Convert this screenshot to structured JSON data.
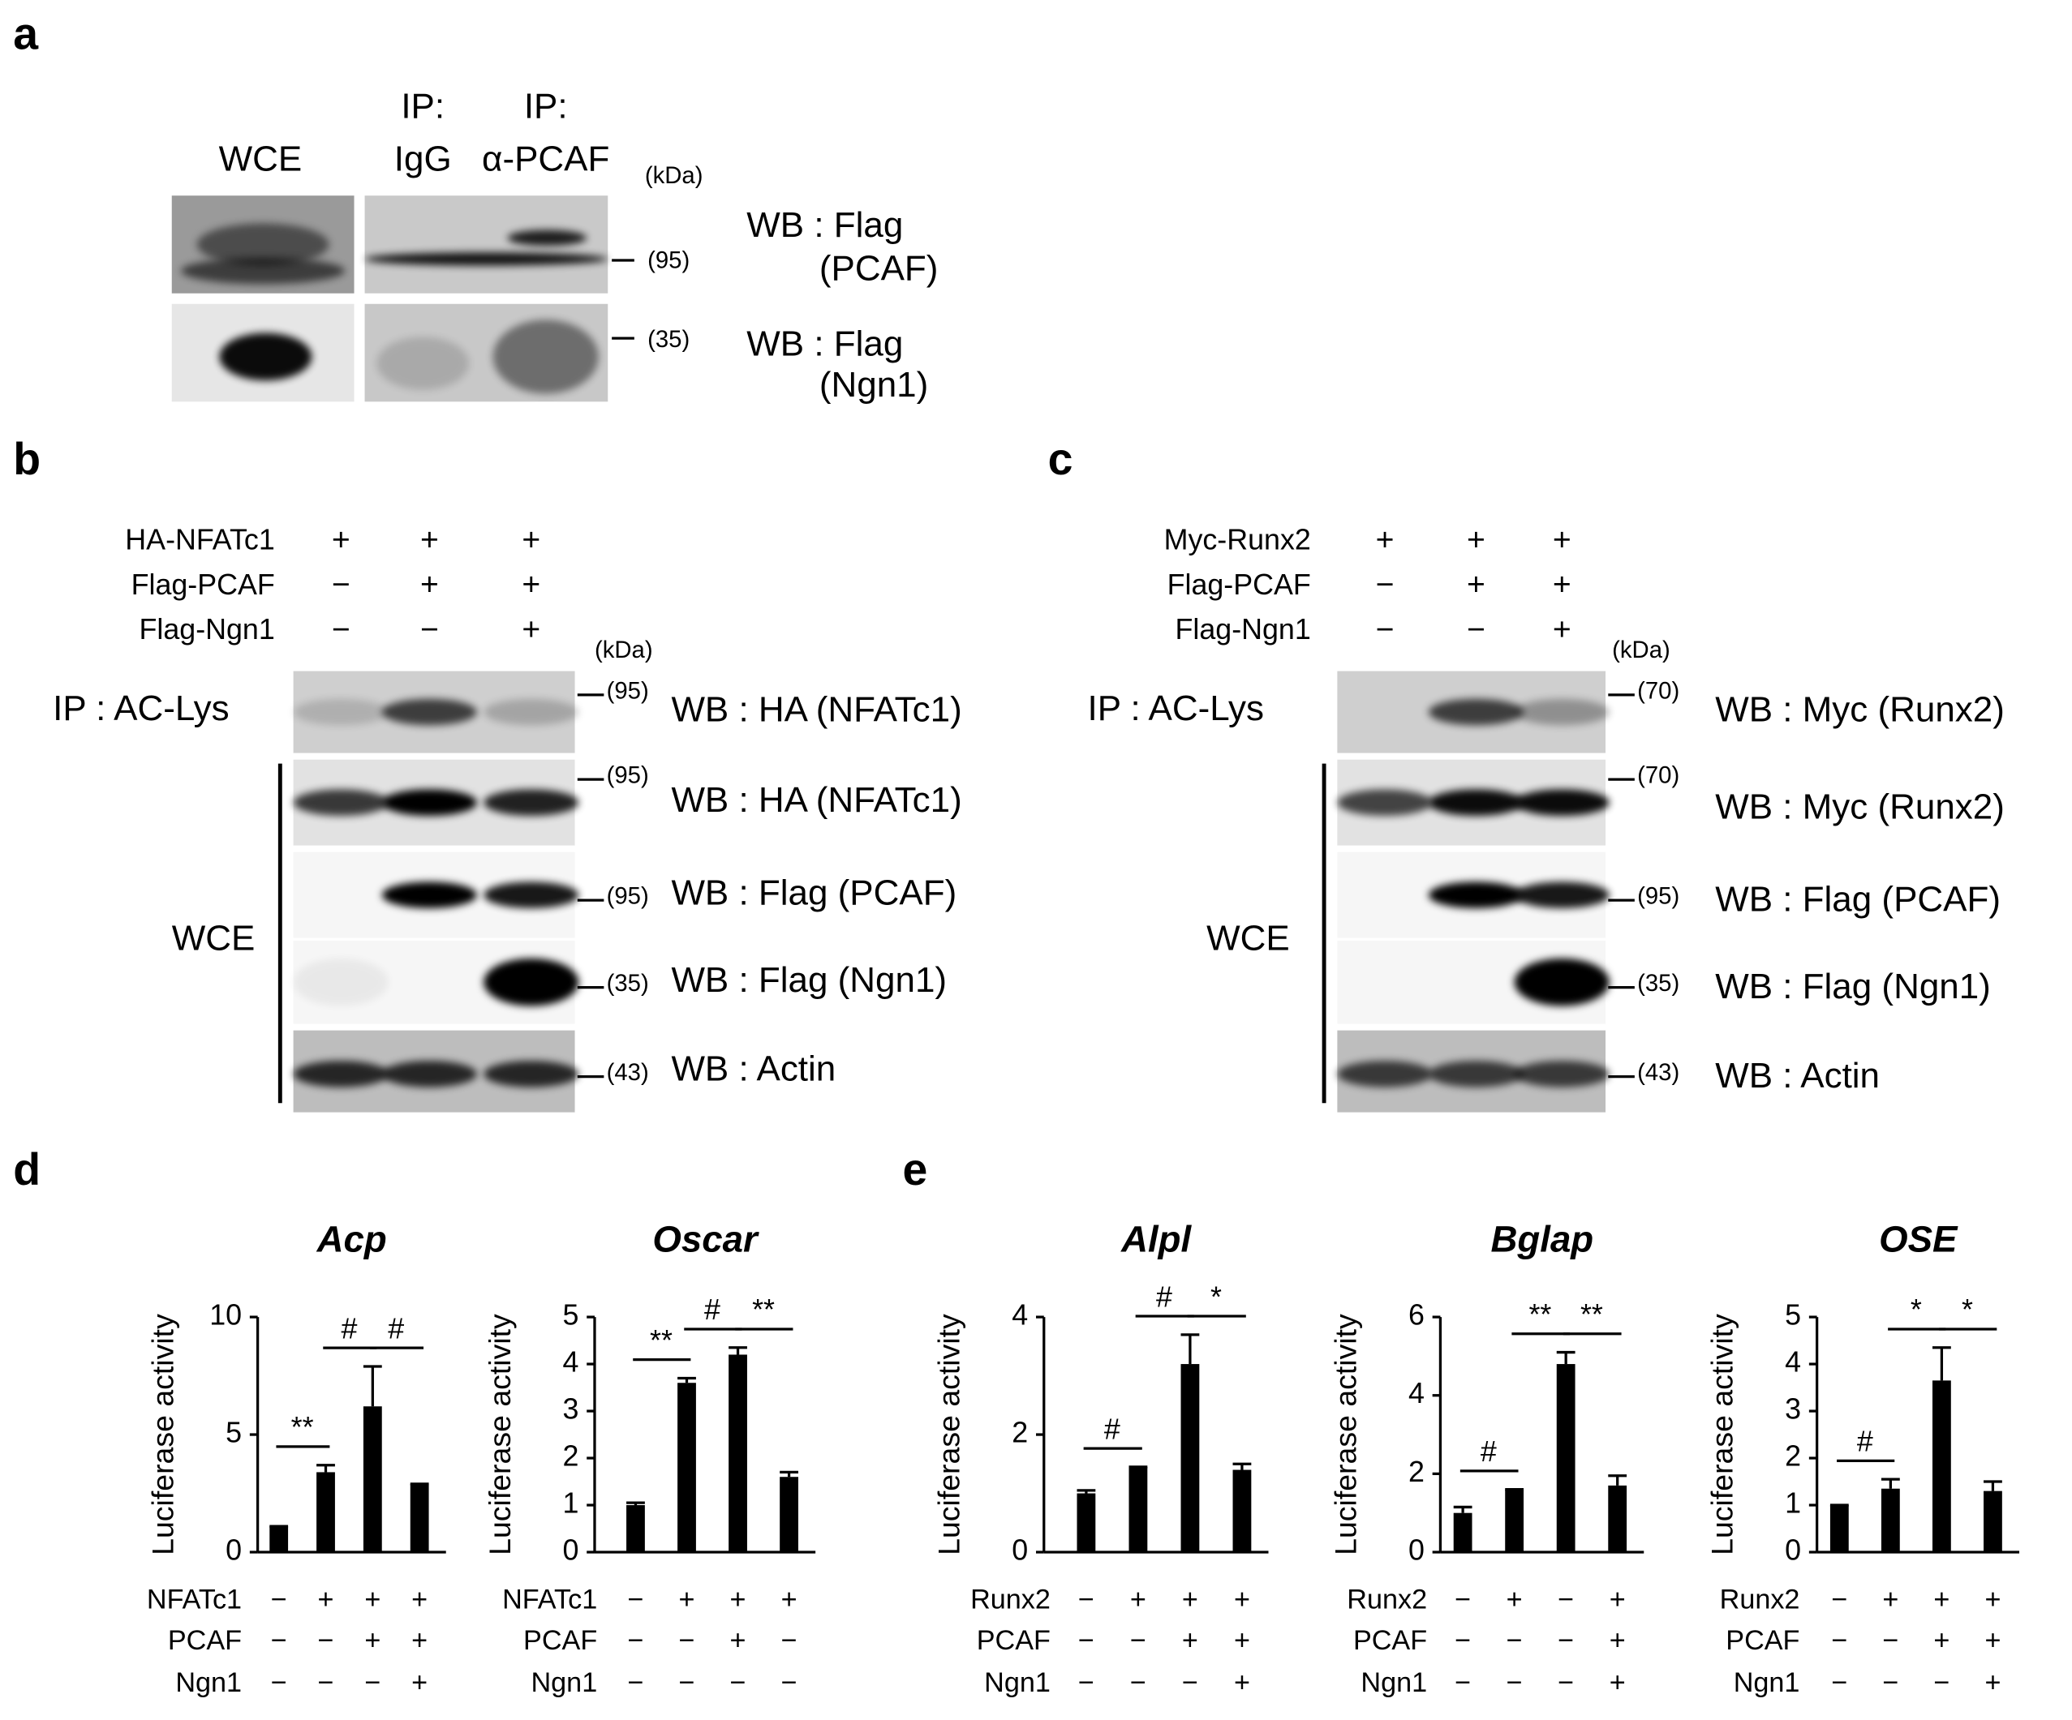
{
  "panel_a": {
    "label": "a",
    "column_labels": [
      "WCE",
      "IP:",
      "IgG",
      "IP:",
      "α-PCAF"
    ],
    "unit": "(kDa)",
    "blots": [
      {
        "marker": "(95)",
        "wb": "WB : Flag",
        "target": "(PCAF)"
      },
      {
        "marker": "(35)",
        "wb": "WB : Flag",
        "target": "(Ngn1)"
      }
    ]
  },
  "panel_b": {
    "label": "b",
    "conditions": [
      {
        "name": "HA-NFATc1",
        "signs": [
          "+",
          "+",
          "+"
        ]
      },
      {
        "name": "Flag-PCAF",
        "signs": [
          "−",
          "+",
          "+"
        ]
      },
      {
        "name": "Flag-Ngn1",
        "signs": [
          "−",
          "−",
          "+"
        ]
      }
    ],
    "unit": "(kDa)",
    "ip_label": "IP : AC-Lys",
    "wce_label": "WCE",
    "blots": [
      {
        "marker": "(95)",
        "wb": "WB : HA (NFATc1)"
      },
      {
        "marker": "(95)",
        "wb": "WB : HA (NFATc1)"
      },
      {
        "marker": "(95)",
        "wb": "WB : Flag (PCAF)"
      },
      {
        "marker": "(35)",
        "wb": "WB : Flag (Ngn1)"
      },
      {
        "marker": "(43)",
        "wb": "WB : Actin"
      }
    ]
  },
  "panel_c": {
    "label": "c",
    "conditions": [
      {
        "name": "Myc-Runx2",
        "signs": [
          "+",
          "+",
          "+"
        ]
      },
      {
        "name": "Flag-PCAF",
        "signs": [
          "−",
          "+",
          "+"
        ]
      },
      {
        "name": "Flag-Ngn1",
        "signs": [
          "−",
          "−",
          "+"
        ]
      }
    ],
    "unit": "(kDa)",
    "ip_label": "IP : AC-Lys",
    "wce_label": "WCE",
    "blots": [
      {
        "marker": "(70)",
        "wb": "WB : Myc (Runx2)"
      },
      {
        "marker": "(70)",
        "wb": "WB : Myc (Runx2)"
      },
      {
        "marker": "(95)",
        "wb": "WB : Flag (PCAF)"
      },
      {
        "marker": "(35)",
        "wb": "WB : Flag (Ngn1)"
      },
      {
        "marker": "(43)",
        "wb": "WB : Actin"
      }
    ]
  },
  "panel_d": {
    "label": "d"
  },
  "panel_e": {
    "label": "e"
  },
  "chart_data": [
    {
      "type": "bar",
      "title": "Acp",
      "ylabel": "Luciferase activity",
      "color": "#000000",
      "values": [
        1.1,
        3.4,
        6.2,
        2.9
      ],
      "errors": [
        0,
        0.3,
        1.7,
        0
      ],
      "ylim": [
        0,
        10
      ],
      "yticks": [
        0,
        5,
        10
      ],
      "significance": [
        "**",
        "#",
        "#"
      ],
      "conditions": [
        {
          "name": "NFATc1",
          "signs": [
            "−",
            "+",
            "+",
            "+"
          ]
        },
        {
          "name": "PCAF",
          "signs": [
            "−",
            "−",
            "+",
            "+"
          ]
        },
        {
          "name": "Ngn1",
          "signs": [
            "−",
            "−",
            "−",
            "+"
          ]
        }
      ]
    },
    {
      "type": "bar",
      "title": "Oscar",
      "ylabel": "Luciferase activity",
      "color": "#000000",
      "values": [
        1.0,
        3.6,
        4.2,
        1.6
      ],
      "errors": [
        0.05,
        0.1,
        0.15,
        0.1
      ],
      "ylim": [
        0,
        5
      ],
      "yticks": [
        0,
        1,
        2,
        3,
        4,
        5
      ],
      "significance": [
        "**",
        "#",
        "**"
      ],
      "conditions": [
        {
          "name": "NFATc1",
          "signs": [
            "−",
            "+",
            "+",
            "+"
          ]
        },
        {
          "name": "PCAF",
          "signs": [
            "−",
            "−",
            "+",
            "−"
          ]
        },
        {
          "name": "Ngn1",
          "signs": [
            "−",
            "−",
            "−",
            "−"
          ]
        }
      ]
    },
    {
      "type": "bar",
      "title": "Alpl",
      "ylabel": "Luciferase activity",
      "color": "#000000",
      "values": [
        1.0,
        1.45,
        3.2,
        1.4
      ],
      "errors": [
        0.05,
        0,
        0.5,
        0.1
      ],
      "ylim": [
        0,
        4
      ],
      "yticks": [
        0,
        2,
        4
      ],
      "significance": [
        "#",
        "#",
        "*"
      ],
      "conditions": [
        {
          "name": "Runx2",
          "signs": [
            "−",
            "+",
            "+",
            "+"
          ]
        },
        {
          "name": "PCAF",
          "signs": [
            "−",
            "−",
            "+",
            "+"
          ]
        },
        {
          "name": "Ngn1",
          "signs": [
            "−",
            "−",
            "−",
            "+"
          ]
        }
      ]
    },
    {
      "type": "bar",
      "title": "Bglap",
      "ylabel": "Luciferase activity",
      "color": "#000000",
      "values": [
        1.0,
        1.6,
        4.8,
        1.7
      ],
      "errors": [
        0.15,
        0,
        0.3,
        0.25
      ],
      "ylim": [
        0,
        6
      ],
      "yticks": [
        0,
        2,
        4,
        6
      ],
      "significance": [
        "#",
        "**",
        "**"
      ],
      "conditions": [
        {
          "name": "Runx2",
          "signs": [
            "−",
            "+",
            "−",
            "+"
          ]
        },
        {
          "name": "PCAF",
          "signs": [
            "−",
            "−",
            "−",
            "+"
          ]
        },
        {
          "name": "Ngn1",
          "signs": [
            "−",
            "−",
            "−",
            "+"
          ]
        }
      ]
    },
    {
      "type": "bar",
      "title": "OSE",
      "ylabel": "Luciferase activity",
      "color": "#000000",
      "values": [
        1.0,
        1.35,
        3.65,
        1.3
      ],
      "errors": [
        0,
        0.2,
        0.7,
        0.2
      ],
      "ylim": [
        0,
        5
      ],
      "yticks": [
        0,
        1,
        2,
        3,
        4,
        5
      ],
      "significance": [
        "#",
        "*",
        "*"
      ],
      "conditions": [
        {
          "name": "Runx2",
          "signs": [
            "−",
            "+",
            "+",
            "+"
          ]
        },
        {
          "name": "PCAF",
          "signs": [
            "−",
            "−",
            "+",
            "+"
          ]
        },
        {
          "name": "Ngn1",
          "signs": [
            "−",
            "−",
            "−",
            "+"
          ]
        }
      ]
    }
  ]
}
